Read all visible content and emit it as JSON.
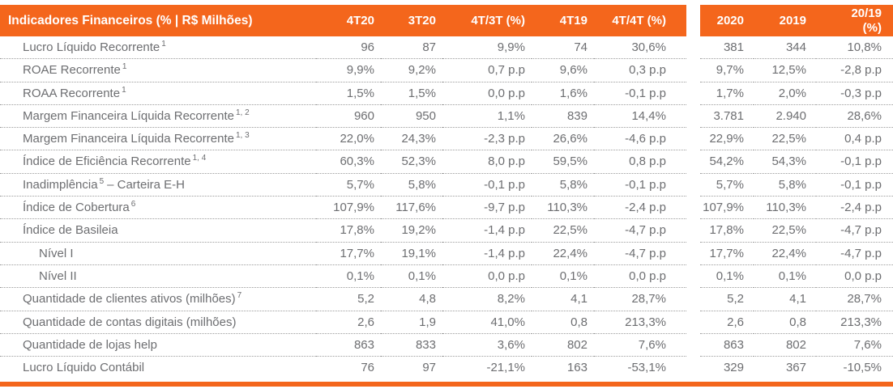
{
  "colors": {
    "accent_orange": "#f4661c",
    "header_text": "#ffffff",
    "body_text": "#6d6e71"
  },
  "table": {
    "title": "Indicadores Financeiros (% | R$ Milhões)",
    "header_block1": [
      "4T20",
      "3T20",
      "4T/3T (%)",
      "4T19",
      "4T/4T (%)"
    ],
    "header_block2": [
      "2020",
      "2019",
      "20/19 (%)"
    ],
    "rows": [
      {
        "label": "Lucro Líquido Recorrente",
        "sup": "1",
        "suffix": "",
        "indent": false,
        "values": [
          "96",
          "87",
          "9,9%",
          "74",
          "30,6%",
          "381",
          "344",
          "10,8%"
        ]
      },
      {
        "label": "ROAE Recorrente",
        "sup": "1",
        "suffix": "",
        "indent": false,
        "values": [
          "9,9%",
          "9,2%",
          "0,7 p.p",
          "9,6%",
          "0,3 p.p",
          "9,7%",
          "12,5%",
          "-2,8 p.p"
        ]
      },
      {
        "label": "ROAA Recorrente",
        "sup": "1",
        "suffix": "",
        "indent": false,
        "values": [
          "1,5%",
          "1,5%",
          "0,0 p.p",
          "1,6%",
          "-0,1 p.p",
          "1,7%",
          "2,0%",
          "-0,3 p.p"
        ]
      },
      {
        "label": "Margem Financeira Líquida Recorrente",
        "sup": "1, 2",
        "suffix": "",
        "indent": false,
        "values": [
          "960",
          "950",
          "1,1%",
          "839",
          "14,4%",
          "3.781",
          "2.940",
          "28,6%"
        ]
      },
      {
        "label": "Margem Financeira Líquida Recorrente",
        "sup": "1, 3",
        "suffix": "",
        "indent": false,
        "values": [
          "22,0%",
          "24,3%",
          "-2,3 p.p",
          "26,6%",
          "-4,6 p.p",
          "22,9%",
          "22,5%",
          "0,4 p.p"
        ]
      },
      {
        "label": "Índice de Eficiência Recorrente",
        "sup": "1, 4",
        "suffix": "",
        "indent": false,
        "values": [
          "60,3%",
          "52,3%",
          "8,0 p.p",
          "59,5%",
          "0,8 p.p",
          "54,2%",
          "54,3%",
          "-0,1 p.p"
        ]
      },
      {
        "label": "Inadimplência",
        "sup": "5",
        "suffix": "– Carteira E-H",
        "indent": false,
        "values": [
          "5,7%",
          "5,8%",
          "-0,1 p.p",
          "5,8%",
          "-0,1 p.p",
          "5,7%",
          "5,8%",
          "-0,1 p.p"
        ]
      },
      {
        "label": "Índice de Cobertura",
        "sup": "6",
        "suffix": "",
        "indent": false,
        "values": [
          "107,9%",
          "117,6%",
          "-9,7 p.p",
          "110,3%",
          "-2,4 p.p",
          "107,9%",
          "110,3%",
          "-2,4 p.p"
        ]
      },
      {
        "label": "Índice de Basileia",
        "sup": "",
        "suffix": "",
        "indent": false,
        "values": [
          "17,8%",
          "19,2%",
          "-1,4 p.p",
          "22,5%",
          "-4,7 p.p",
          "17,8%",
          "22,5%",
          "-4,7 p.p"
        ]
      },
      {
        "label": "Nível I",
        "sup": "",
        "suffix": "",
        "indent": true,
        "values": [
          "17,7%",
          "19,1%",
          "-1,4 p.p",
          "22,4%",
          "-4,7 p.p",
          "17,7%",
          "22,4%",
          "-4,7 p.p"
        ]
      },
      {
        "label": "Nível II",
        "sup": "",
        "suffix": "",
        "indent": true,
        "values": [
          "0,1%",
          "0,1%",
          "0,0 p.p",
          "0,1%",
          "0,0 p.p",
          "0,1%",
          "0,1%",
          "0,0 p.p"
        ]
      },
      {
        "label": "Quantidade de clientes ativos (milhões)",
        "sup": "7",
        "suffix": "",
        "indent": false,
        "values": [
          "5,2",
          "4,8",
          "8,2%",
          "4,1",
          "28,7%",
          "5,2",
          "4,1",
          "28,7%"
        ]
      },
      {
        "label": "Quantidade de contas digitais (milhões)",
        "sup": "",
        "suffix": "",
        "indent": false,
        "values": [
          "2,6",
          "1,9",
          "41,0%",
          "0,8",
          "213,3%",
          "2,6",
          "0,8",
          "213,3%"
        ]
      },
      {
        "label": "Quantidade de lojas help",
        "sup": "",
        "suffix": "",
        "indent": false,
        "values": [
          "863",
          "833",
          "3,6%",
          "802",
          "7,6%",
          "863",
          "802",
          "7,6%"
        ]
      },
      {
        "label": "Lucro Líquido Contábil",
        "sup": "",
        "suffix": "",
        "indent": false,
        "values": [
          "76",
          "97",
          "-21,1%",
          "163",
          "-53,1%",
          "329",
          "367",
          "-10,5%"
        ]
      }
    ]
  }
}
